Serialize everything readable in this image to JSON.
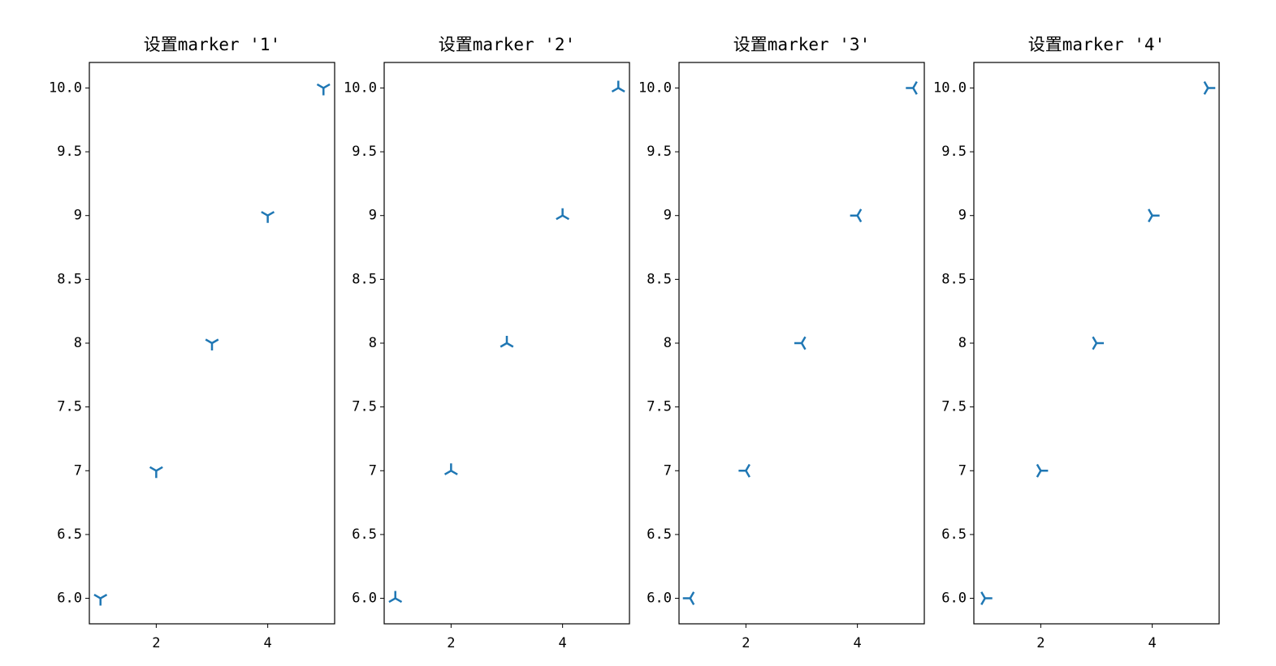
{
  "chart_data": [
    {
      "type": "scatter",
      "title": "设置marker '1'",
      "marker": "1",
      "color": "#1f77b4",
      "x": [
        1,
        2,
        3,
        4,
        5
      ],
      "y": [
        6,
        7,
        8,
        9,
        10
      ],
      "xlim": [
        0.8,
        5.2
      ],
      "ylim": [
        5.8,
        10.2
      ],
      "xticks": [
        2,
        4
      ],
      "yticks": [
        {
          "value": 6,
          "label": "6.0"
        },
        6.5,
        7,
        7.5,
        8,
        8.5,
        9,
        9.5,
        {
          "value": 10,
          "label": "10.0"
        }
      ]
    },
    {
      "type": "scatter",
      "title": "设置marker '2'",
      "marker": "2",
      "color": "#1f77b4",
      "x": [
        1,
        2,
        3,
        4,
        5
      ],
      "y": [
        6,
        7,
        8,
        9,
        10
      ],
      "xlim": [
        0.8,
        5.2
      ],
      "ylim": [
        5.8,
        10.2
      ],
      "xticks": [
        2,
        4
      ],
      "yticks": [
        {
          "value": 6,
          "label": "6.0"
        },
        6.5,
        7,
        7.5,
        8,
        8.5,
        9,
        9.5,
        {
          "value": 10,
          "label": "10.0"
        }
      ]
    },
    {
      "type": "scatter",
      "title": "设置marker '3'",
      "marker": "3",
      "color": "#1f77b4",
      "x": [
        1,
        2,
        3,
        4,
        5
      ],
      "y": [
        6,
        7,
        8,
        9,
        10
      ],
      "xlim": [
        0.8,
        5.2
      ],
      "ylim": [
        5.8,
        10.2
      ],
      "xticks": [
        2,
        4
      ],
      "yticks": [
        {
          "value": 6,
          "label": "6.0"
        },
        6.5,
        7,
        7.5,
        8,
        8.5,
        9,
        9.5,
        {
          "value": 10,
          "label": "10.0"
        }
      ]
    },
    {
      "type": "scatter",
      "title": "设置marker '4'",
      "marker": "4",
      "color": "#1f77b4",
      "x": [
        1,
        2,
        3,
        4,
        5
      ],
      "y": [
        6,
        7,
        8,
        9,
        10
      ],
      "xlim": [
        0.8,
        5.2
      ],
      "ylim": [
        5.8,
        10.2
      ],
      "xticks": [
        2,
        4
      ],
      "yticks": [
        {
          "value": 6,
          "label": "6.0"
        },
        6.5,
        7,
        7.5,
        8,
        8.5,
        9,
        9.5,
        {
          "value": 10,
          "label": "10.0"
        }
      ]
    }
  ]
}
